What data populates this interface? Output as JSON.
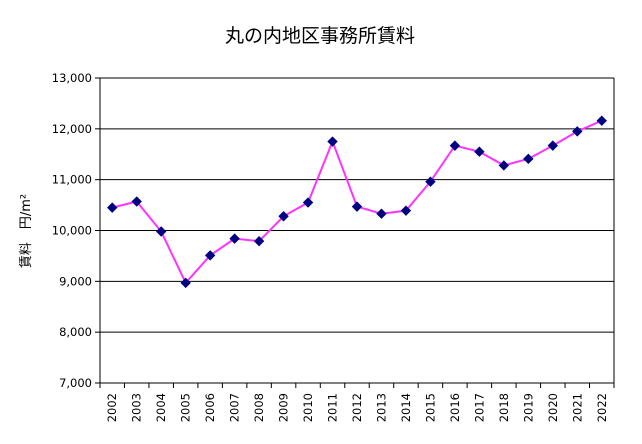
{
  "chart_data": {
    "type": "line",
    "title": "丸の内地区事務所賃料",
    "xlabel": "",
    "ylabel": "賃料　円/m²",
    "ylim": [
      7000,
      13000
    ],
    "yticks": [
      7000,
      8000,
      9000,
      10000,
      11000,
      12000,
      13000
    ],
    "ytick_labels": [
      "7,000",
      "8,000",
      "9,000",
      "10,000",
      "11,000",
      "12,000",
      "13,000"
    ],
    "grid": true,
    "legend": "none",
    "categories": [
      "2002",
      "2003",
      "2004",
      "2005",
      "2006",
      "2007",
      "2008",
      "2009",
      "2010",
      "2011",
      "2012",
      "2013",
      "2014",
      "2015",
      "2016",
      "2017",
      "2018",
      "2019",
      "2020",
      "2021",
      "2022"
    ],
    "series": [
      {
        "values": [
          10450,
          10570,
          9980,
          8970,
          9510,
          9840,
          9790,
          10280,
          10550,
          11750,
          10470,
          10330,
          10390,
          10960,
          11670,
          11550,
          11280,
          11410,
          11670,
          11950,
          12160
        ],
        "line_color": "#ff33ff",
        "marker_color": "#000080"
      }
    ]
  }
}
